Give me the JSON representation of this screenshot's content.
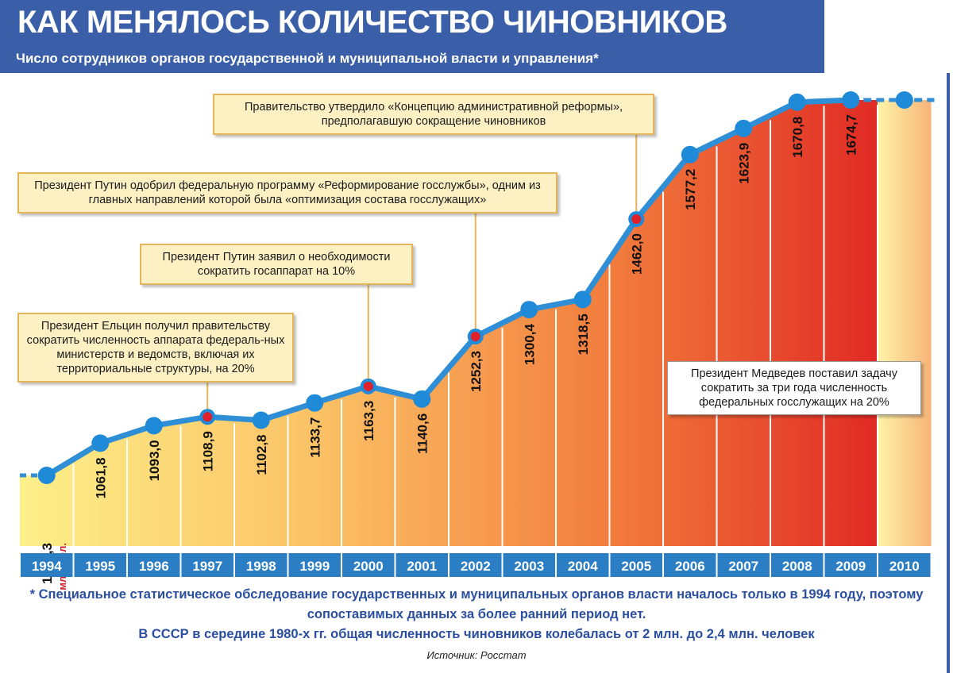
{
  "header": {
    "title": "КАК МЕНЯЛОСЬ КОЛИЧЕСТВО ЧИНОВНИКОВ",
    "subtitle": "Число сотрудников органов государственной и муниципальной власти и управления*"
  },
  "chart_data": {
    "type": "line",
    "categories": [
      "1994",
      "1995",
      "1996",
      "1997",
      "1998",
      "1999",
      "2000",
      "2001",
      "2002",
      "2003",
      "2004",
      "2005",
      "2006",
      "2007",
      "2008",
      "2009",
      "2010"
    ],
    "series": [
      {
        "values": [
          1004.3,
          1061.8,
          1093.0,
          1108.9,
          1102.8,
          1133.7,
          1163.3,
          1140.6,
          1252.3,
          1300.4,
          1318.5,
          1462.0,
          1577.2,
          1623.9,
          1670.8,
          1674.7,
          null
        ],
        "labels": [
          "1004,3",
          "1061,8",
          "1093,0",
          "1108,9",
          "1102,8",
          "1133,7",
          "1163,3",
          "1140,6",
          "1252,3",
          "1300,4",
          "1318,5",
          "1462,0",
          "1577,2",
          "1623,9",
          "1670,8",
          "1674,7",
          ""
        ]
      }
    ],
    "unit_label": "млн. чел.",
    "highlighted_points": [
      "1997",
      "2000",
      "2002",
      "2005"
    ],
    "colors": {
      "line": "#2e8fd6",
      "marker": "#1f8ad8",
      "highlight": "#e0202a",
      "axis_bar": "#2b7ec4"
    }
  },
  "callouts": [
    {
      "text": "Президент Ельцин получил правительству сократить численность аппарата федераль-ных министерств и ведомств, включая их территориальные структуры, на 20%",
      "year": "1997"
    },
    {
      "text": "Президент Путин заявил о необходимости сократить госаппарат на 10%",
      "year": "2000"
    },
    {
      "text": "Президент Путин одобрил федеральную программу «Реформирование госслужбы», одним из главных направлений которой была «оптимизация состава госслужащих»",
      "year": "2002"
    },
    {
      "text": "Правительство утвердило «Концепцию административной реформы», предполагавшую сокращение чиновников",
      "year": "2005"
    },
    {
      "text": "Президент Медведев поставил задачу сократить за три года численность федеральных госслужащих на 20%",
      "year": "2010"
    }
  ],
  "footnote": {
    "line1": "* Специальное статистическое обследование государственных и муниципальных органов власти началось только в 1994 году, поэтому сопоставимых данных за более ранний период нет.",
    "line2": "В СССР в середине 1980-х гг. общая численность чиновников колебалась от 2 млн. до 2,4 млн. человек"
  },
  "source": "Источник: Росстат"
}
